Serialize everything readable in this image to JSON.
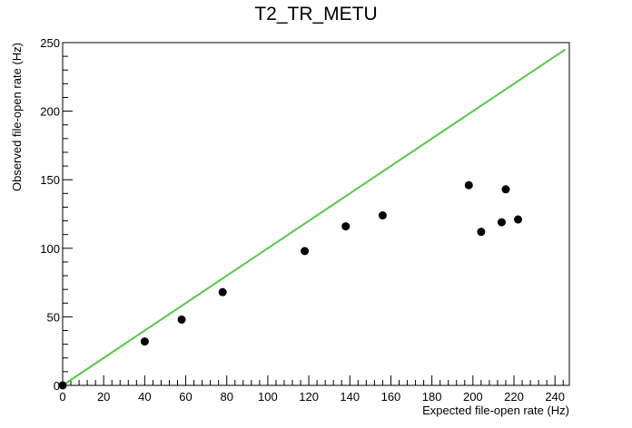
{
  "chart_data": {
    "type": "scatter",
    "title": "T2_TR_METU",
    "xlabel": "Expected file-open rate (Hz)",
    "ylabel": "Observed file-open rate (Hz)",
    "xlim": [
      0,
      247
    ],
    "ylim": [
      0,
      250
    ],
    "xticks": [
      0,
      20,
      40,
      60,
      80,
      100,
      120,
      140,
      160,
      180,
      200,
      220,
      240
    ],
    "yticks": [
      0,
      50,
      100,
      150,
      200,
      250
    ],
    "grid": false,
    "points": [
      {
        "x": 0,
        "y": 0
      },
      {
        "x": 40,
        "y": 32
      },
      {
        "x": 58,
        "y": 48
      },
      {
        "x": 78,
        "y": 68
      },
      {
        "x": 118,
        "y": 98
      },
      {
        "x": 138,
        "y": 116
      },
      {
        "x": 156,
        "y": 124
      },
      {
        "x": 198,
        "y": 146
      },
      {
        "x": 204,
        "y": 112
      },
      {
        "x": 214,
        "y": 119
      },
      {
        "x": 216,
        "y": 143
      },
      {
        "x": 222,
        "y": 121
      }
    ],
    "reference_line": {
      "x": [
        0,
        245
      ],
      "y": [
        0,
        245
      ],
      "color": "#5ac84a"
    },
    "marker_color": "#000000"
  }
}
